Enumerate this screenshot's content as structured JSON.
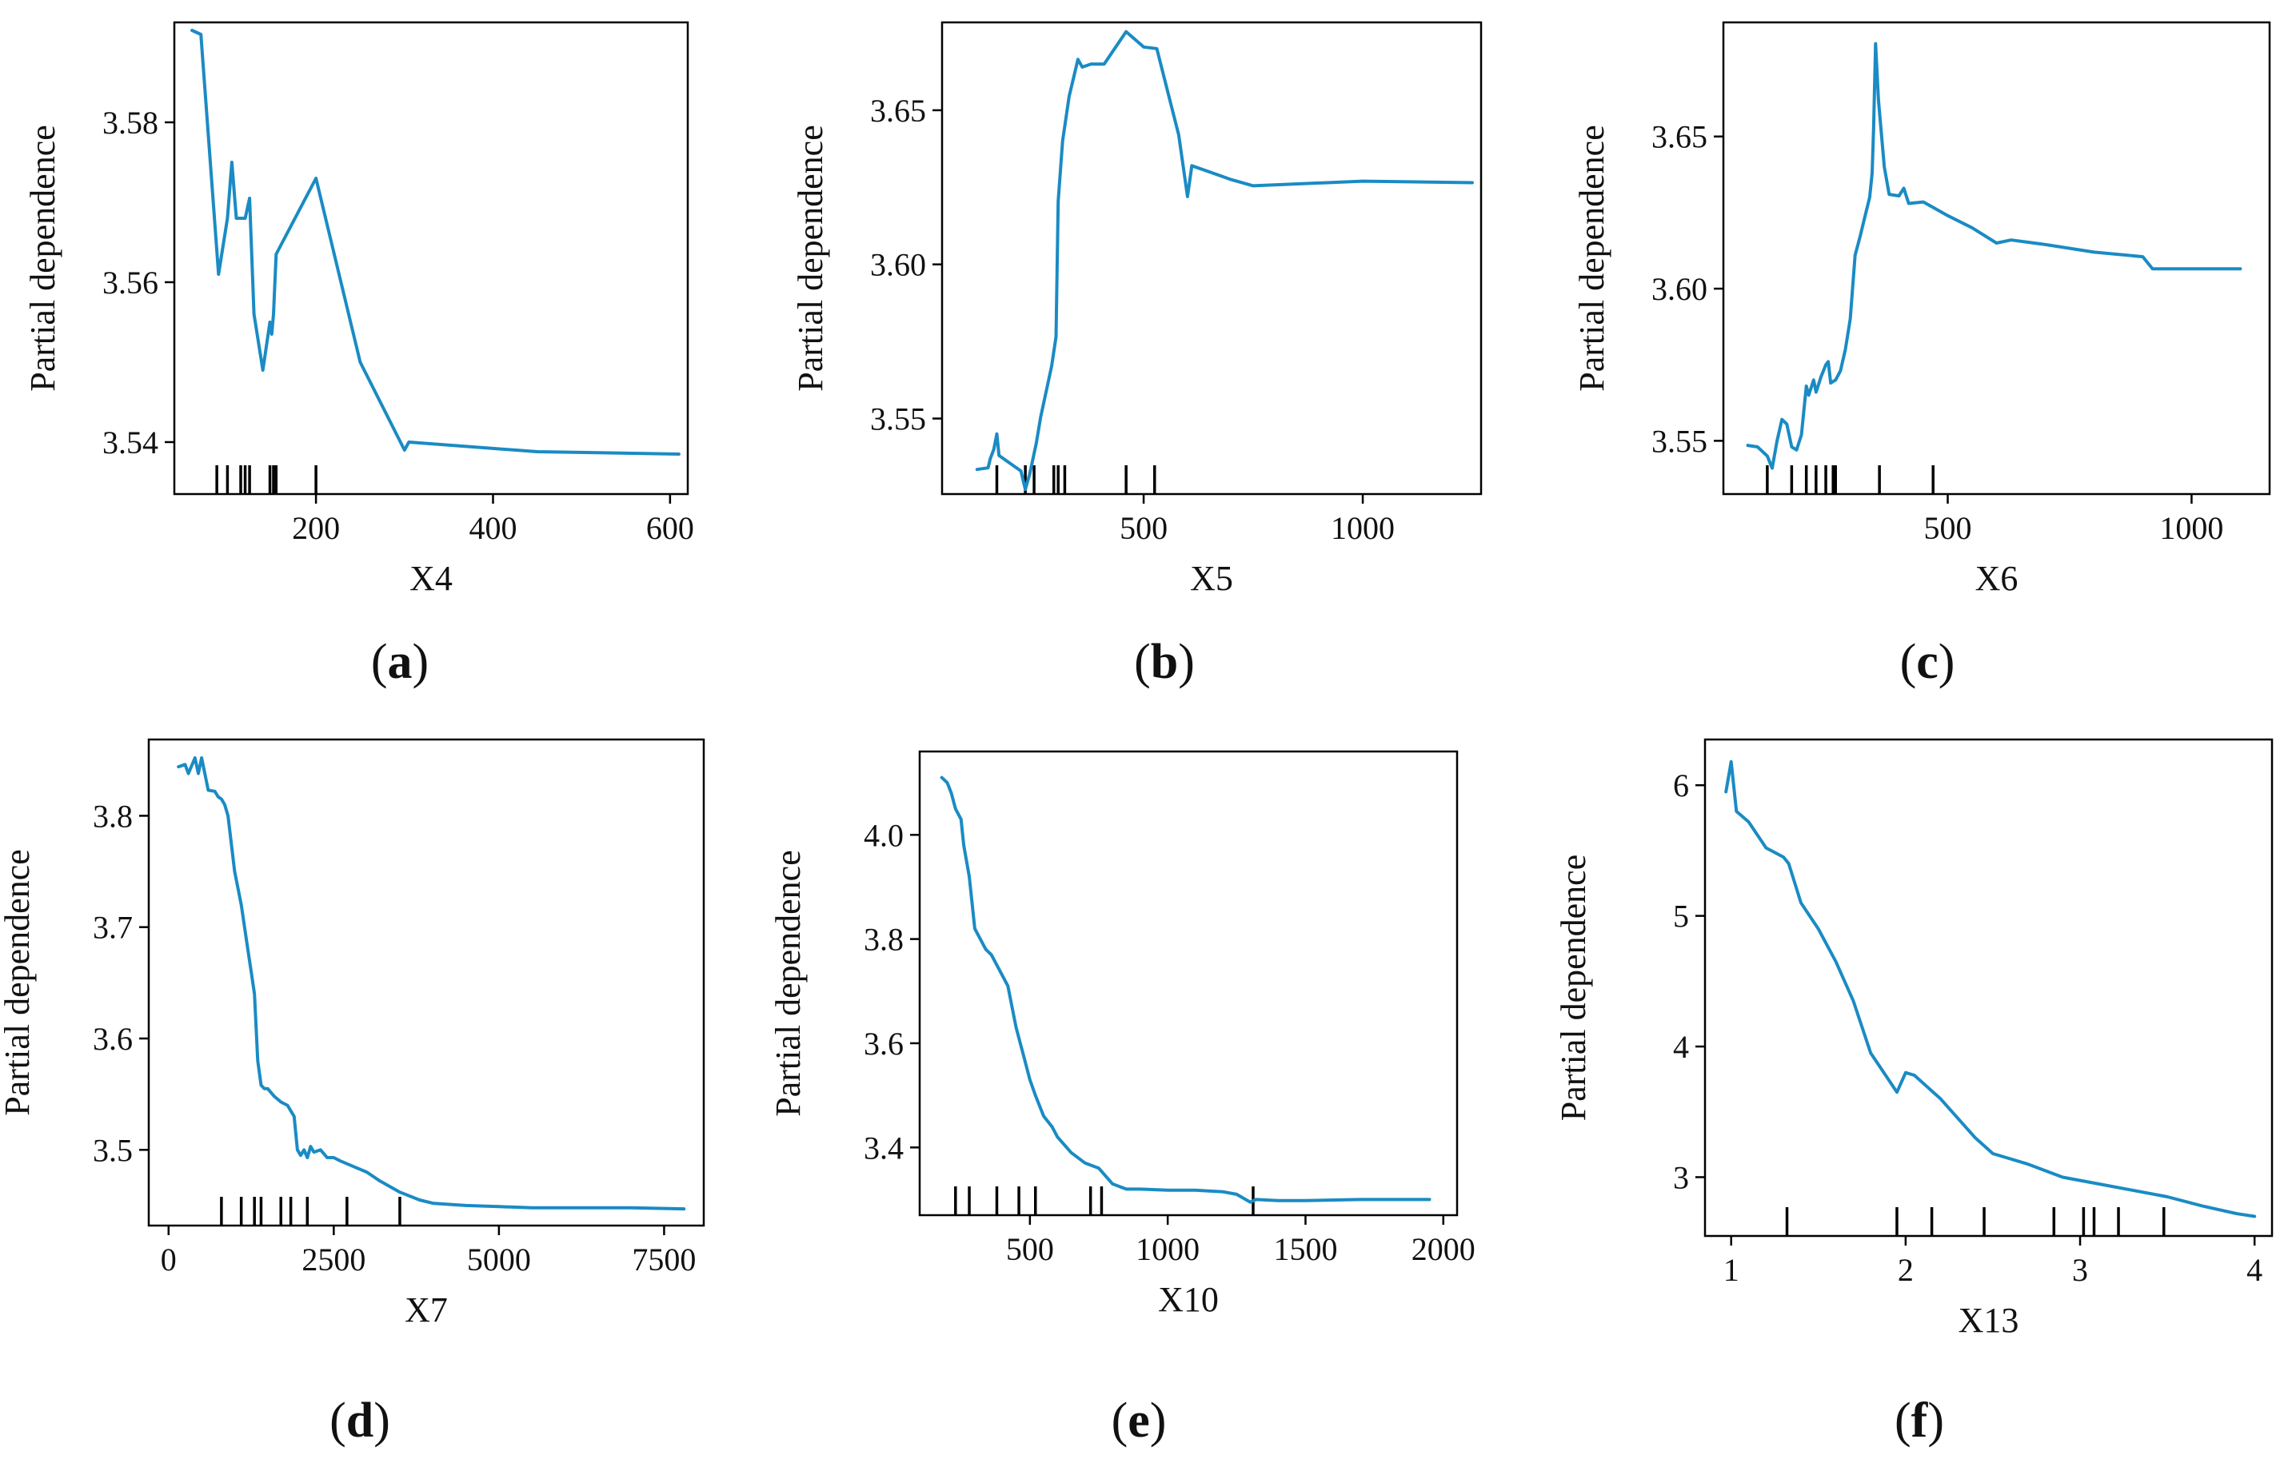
{
  "colors": {
    "line": "#1a8bc4",
    "axis": "#000000",
    "text": "#111111"
  },
  "chart_data": [
    {
      "type": "line",
      "panel": "a",
      "caption": "(a)",
      "xlabel": "X4",
      "ylabel": "Partial dependence",
      "xlim": [
        40,
        620
      ],
      "ylim": [
        3.5335,
        3.5925
      ],
      "xticks": [
        200,
        400,
        600
      ],
      "xtick_labels": [
        "200",
        "400",
        "600"
      ],
      "yticks": [
        3.54,
        3.56,
        3.58
      ],
      "ytick_labels": [
        "3.54",
        "3.56",
        "3.58"
      ],
      "x": [
        60,
        70,
        90,
        100,
        105,
        110,
        120,
        125,
        130,
        140,
        148,
        150,
        152,
        155,
        200,
        250,
        300,
        305,
        450,
        610
      ],
      "y": [
        3.5915,
        3.591,
        3.561,
        3.568,
        3.575,
        3.568,
        3.568,
        3.5705,
        3.556,
        3.549,
        3.555,
        3.5535,
        3.556,
        3.5635,
        3.573,
        3.55,
        3.539,
        3.54,
        3.5388,
        3.5385
      ],
      "rug": [
        88,
        100,
        115,
        120,
        125,
        148,
        152,
        155,
        200
      ]
    },
    {
      "type": "line",
      "panel": "b",
      "caption": "(b)",
      "xlabel": "X5",
      "ylabel": "Partial dependence",
      "xlim": [
        40,
        1270
      ],
      "ylim": [
        3.5255,
        3.6785
      ],
      "xticks": [
        500,
        1000
      ],
      "xtick_labels": [
        "500",
        "1000"
      ],
      "yticks": [
        3.55,
        3.6,
        3.65
      ],
      "ytick_labels": [
        "3.55",
        "3.60",
        "3.65"
      ],
      "x": [
        120,
        145,
        150,
        158,
        165,
        170,
        220,
        230,
        240,
        255,
        265,
        290,
        300,
        305,
        315,
        330,
        350,
        360,
        380,
        410,
        460,
        500,
        530,
        580,
        600,
        610,
        650,
        700,
        750,
        1000,
        1250
      ],
      "y": [
        3.5335,
        3.534,
        3.537,
        3.54,
        3.545,
        3.538,
        3.533,
        3.527,
        3.532,
        3.542,
        3.5505,
        3.567,
        3.5765,
        3.6205,
        3.64,
        3.6545,
        3.6665,
        3.664,
        3.665,
        3.665,
        3.6755,
        3.6705,
        3.67,
        3.642,
        3.622,
        3.632,
        3.63,
        3.6275,
        3.6255,
        3.627,
        3.6265
      ],
      "rug": [
        165,
        230,
        250,
        295,
        305,
        320,
        460,
        525
      ]
    },
    {
      "type": "line",
      "panel": "c",
      "caption": "(c)",
      "xlabel": "X6",
      "ylabel": "Partial dependence",
      "xlim": [
        40,
        1160
      ],
      "ylim": [
        3.5325,
        3.6875
      ],
      "xticks": [
        500,
        1000
      ],
      "xtick_labels": [
        "500",
        "1000"
      ],
      "yticks": [
        3.55,
        3.6,
        3.65
      ],
      "ytick_labels": [
        "3.55",
        "3.60",
        "3.65"
      ],
      "x": [
        90,
        110,
        130,
        140,
        150,
        160,
        170,
        180,
        190,
        200,
        210,
        215,
        225,
        230,
        240,
        250,
        255,
        260,
        270,
        280,
        290,
        300,
        310,
        320,
        330,
        340,
        345,
        348,
        352,
        358,
        370,
        380,
        400,
        410,
        420,
        450,
        500,
        550,
        600,
        630,
        700,
        800,
        900,
        920,
        1000,
        1100
      ],
      "y": [
        3.5485,
        3.548,
        3.545,
        3.541,
        3.55,
        3.557,
        3.5555,
        3.548,
        3.547,
        3.552,
        3.568,
        3.565,
        3.57,
        3.566,
        3.571,
        3.575,
        3.576,
        3.569,
        3.57,
        3.573,
        3.58,
        3.59,
        3.611,
        3.617,
        3.6235,
        3.63,
        3.638,
        3.6525,
        3.6805,
        3.662,
        3.64,
        3.631,
        3.6305,
        3.633,
        3.628,
        3.6285,
        3.624,
        3.62,
        3.615,
        3.616,
        3.6145,
        3.612,
        3.6105,
        3.6065,
        3.6065,
        3.6065
      ],
      "rug": [
        130,
        180,
        210,
        230,
        250,
        265,
        270,
        360,
        470
      ]
    },
    {
      "type": "line",
      "panel": "d",
      "caption": "(d)",
      "xlabel": "X7",
      "ylabel": "Partial dependence",
      "xlim": [
        -300,
        8100
      ],
      "ylim": [
        3.432,
        3.8685
      ],
      "xticks": [
        0,
        2500,
        5000,
        7500
      ],
      "xtick_labels": [
        "0",
        "2500",
        "5000",
        "7500"
      ],
      "yticks": [
        3.5,
        3.6,
        3.7,
        3.8
      ],
      "ytick_labels": [
        "3.5",
        "3.6",
        "3.7",
        "3.8"
      ],
      "x": [
        150,
        250,
        300,
        400,
        450,
        500,
        600,
        700,
        750,
        800,
        850,
        900,
        1000,
        1100,
        1200,
        1250,
        1300,
        1350,
        1400,
        1450,
        1500,
        1600,
        1700,
        1800,
        1900,
        1950,
        2000,
        2050,
        2100,
        2150,
        2200,
        2300,
        2400,
        2500,
        2600,
        2800,
        3000,
        3200,
        3500,
        3800,
        4000,
        4500,
        5000,
        5500,
        6000,
        7000,
        7800
      ],
      "y": [
        3.844,
        3.846,
        3.838,
        3.852,
        3.838,
        3.852,
        3.823,
        3.822,
        3.817,
        3.815,
        3.81,
        3.8,
        3.75,
        3.72,
        3.68,
        3.66,
        3.64,
        3.58,
        3.558,
        3.555,
        3.555,
        3.548,
        3.543,
        3.54,
        3.53,
        3.5,
        3.495,
        3.5,
        3.493,
        3.503,
        3.498,
        3.5,
        3.493,
        3.493,
        3.49,
        3.485,
        3.48,
        3.472,
        3.462,
        3.455,
        3.452,
        3.45,
        3.449,
        3.448,
        3.448,
        3.448,
        3.447
      ],
      "rug": [
        800,
        1100,
        1300,
        1400,
        1700,
        1850,
        2100,
        2700,
        3500
      ]
    },
    {
      "type": "line",
      "panel": "e",
      "caption": "(e)",
      "xlabel": "X10",
      "ylabel": "Partial dependence",
      "xlim": [
        100,
        2050
      ],
      "ylim": [
        3.27,
        4.16
      ],
      "xticks": [
        500,
        1000,
        1500,
        2000
      ],
      "xtick_labels": [
        "500",
        "1000",
        "1500",
        "2000"
      ],
      "yticks": [
        3.4,
        3.6,
        3.8,
        4.0
      ],
      "ytick_labels": [
        "3.4",
        "3.6",
        "3.8",
        "4.0"
      ],
      "x": [
        180,
        200,
        215,
        230,
        250,
        260,
        280,
        300,
        320,
        340,
        360,
        380,
        400,
        420,
        450,
        480,
        500,
        520,
        550,
        580,
        600,
        650,
        700,
        750,
        800,
        850,
        900,
        1000,
        1100,
        1200,
        1250,
        1300,
        1320,
        1400,
        1500,
        1700,
        1950
      ],
      "y": [
        4.11,
        4.1,
        4.08,
        4.05,
        4.03,
        3.98,
        3.92,
        3.82,
        3.8,
        3.78,
        3.77,
        3.75,
        3.73,
        3.71,
        3.63,
        3.57,
        3.53,
        3.5,
        3.46,
        3.44,
        3.42,
        3.39,
        3.37,
        3.36,
        3.33,
        3.32,
        3.32,
        3.318,
        3.318,
        3.315,
        3.31,
        3.295,
        3.3,
        3.298,
        3.298,
        3.3,
        3.3
      ],
      "rug": [
        230,
        280,
        380,
        460,
        520,
        720,
        760,
        1310
      ]
    },
    {
      "type": "line",
      "panel": "f",
      "caption": "(f)",
      "xlabel": "X13",
      "ylabel": "Partial dependence",
      "xlim": [
        0.85,
        4.1
      ],
      "ylim": [
        2.55,
        6.35
      ],
      "xticks": [
        1,
        2,
        3,
        4
      ],
      "xtick_labels": [
        "1",
        "2",
        "3",
        "4"
      ],
      "yticks": [
        3,
        4,
        5,
        6
      ],
      "ytick_labels": [
        "3",
        "4",
        "5",
        "6"
      ],
      "x": [
        0.97,
        1.0,
        1.03,
        1.1,
        1.2,
        1.3,
        1.33,
        1.4,
        1.5,
        1.6,
        1.7,
        1.8,
        1.85,
        1.9,
        1.95,
        2.0,
        2.05,
        2.1,
        2.2,
        2.3,
        2.4,
        2.5,
        2.7,
        2.9,
        3.1,
        3.3,
        3.5,
        3.7,
        3.9,
        4.0
      ],
      "y": [
        5.95,
        6.18,
        5.8,
        5.72,
        5.52,
        5.45,
        5.4,
        5.1,
        4.9,
        4.65,
        4.35,
        3.95,
        3.85,
        3.75,
        3.65,
        3.8,
        3.78,
        3.72,
        3.6,
        3.45,
        3.3,
        3.18,
        3.1,
        3.0,
        2.95,
        2.9,
        2.85,
        2.78,
        2.72,
        2.7
      ],
      "rug": [
        1.32,
        1.95,
        2.15,
        2.45,
        2.85,
        3.02,
        3.08,
        3.22,
        3.48
      ]
    }
  ]
}
